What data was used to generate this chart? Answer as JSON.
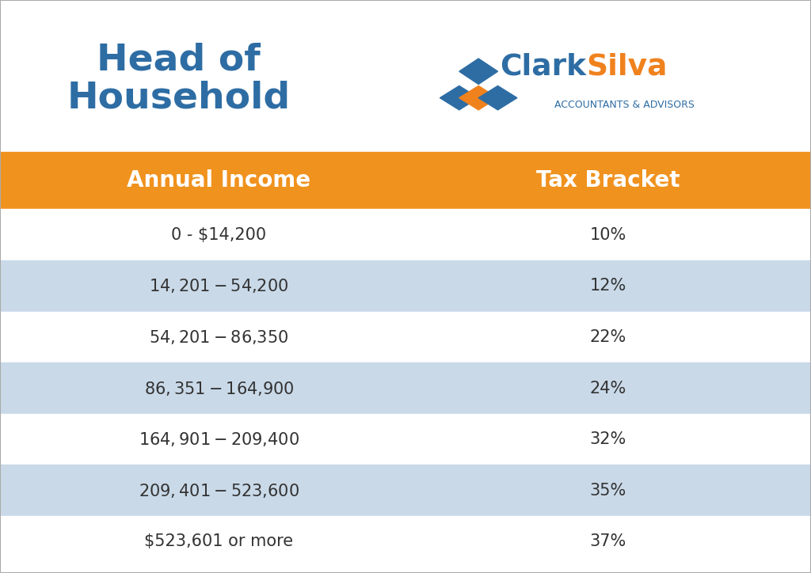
{
  "title_line1": "Head of",
  "title_line2": "Household",
  "title_color": "#2E6DA4",
  "company_name_clark": "Clark",
  "company_name_silva": "Silva",
  "company_subtitle": "ACCOUNTANTS & ADVISORS",
  "company_blue": "#2E6DA4",
  "company_orange": "#F0821E",
  "header_bg": "#F0921E",
  "header_income": "Annual Income",
  "header_bracket": "Tax Bracket",
  "header_text_color": "#FFFFFF",
  "text_color_dark": "#333333",
  "income_ranges": [
    "0 - $14,200",
    "$14,201 - $54,200",
    "$54,201 - $86,350",
    "$86,351 - $164,900",
    "$164,901 - $209,400",
    "$209,401 - $523,600",
    "$523,601 or more"
  ],
  "tax_brackets": [
    "10%",
    "12%",
    "22%",
    "24%",
    "32%",
    "35%",
    "37%"
  ],
  "row_colors": [
    "#FFFFFF",
    "#C9D9E8",
    "#FFFFFF",
    "#C9D9E8",
    "#FFFFFF",
    "#C9D9E8",
    "#FFFFFF"
  ],
  "bg_color": "#FFFFFF"
}
